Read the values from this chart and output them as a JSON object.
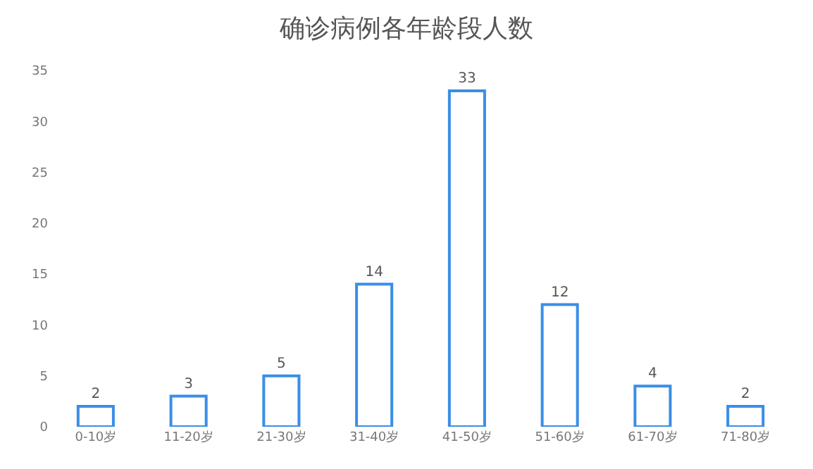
{
  "chart_data": {
    "type": "bar",
    "title": "确诊病例各年龄段人数",
    "categories": [
      "0-10岁",
      "11-20岁",
      "21-30岁",
      "31-40岁",
      "41-50岁",
      "51-60岁",
      "61-70岁",
      "71-80岁"
    ],
    "values": [
      2,
      3,
      5,
      14,
      33,
      12,
      4,
      2
    ],
    "color": "#3a8ee6",
    "ylim": [
      0,
      35
    ],
    "yticks": [
      0,
      5,
      10,
      15,
      20,
      25,
      30,
      35
    ],
    "data_labels": true,
    "legend": false
  }
}
